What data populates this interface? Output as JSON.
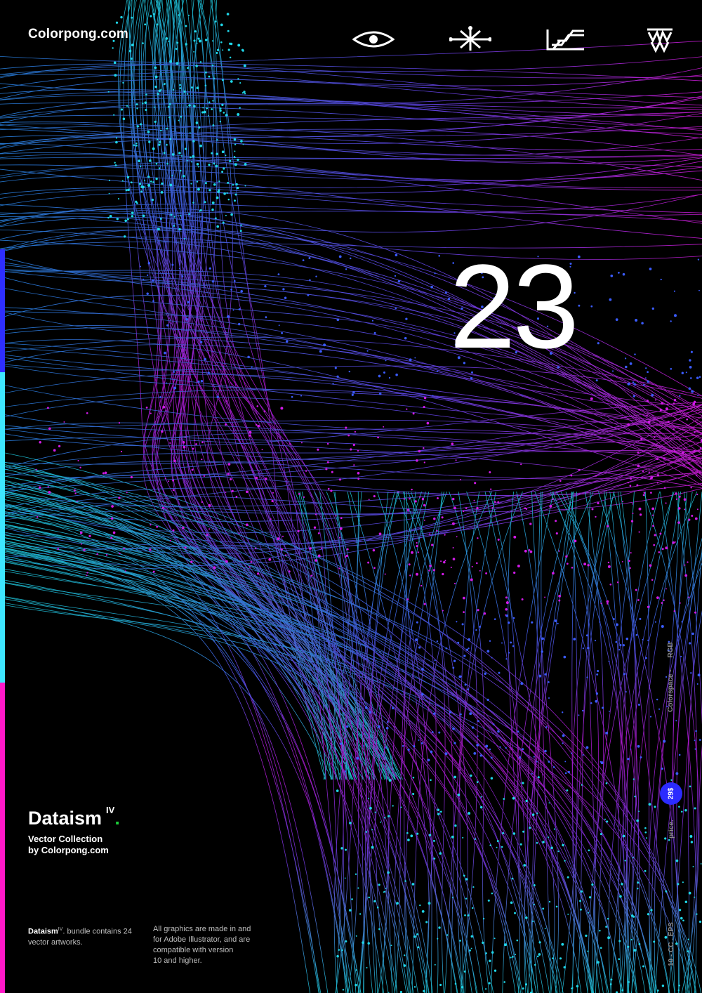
{
  "brand": "Colorpong.com",
  "icons": [
    "eye-glyph-icon",
    "asterisk-glyph-icon",
    "stairs-glyph-icon",
    "crown-glyph-icon"
  ],
  "number": "23",
  "stripes": [
    "#2e2eff",
    "#3ee6ff",
    "#ff18c8"
  ],
  "title": {
    "name": "Dataism",
    "sup": "IV",
    "dot": "."
  },
  "subtitle": {
    "line1": "Vector Collection",
    "line2": "by Colorpong.com"
  },
  "footer_left": {
    "bold": "Dataism",
    "sup": "IV",
    "rest": ". bundle contains 24 vector artworks."
  },
  "footer_right": {
    "line1": "All graphics are made in and",
    "line2": "for Adobe Illustrator, and are",
    "line3": "compatible with version",
    "line4": "10 and higher."
  },
  "side": {
    "colorspace_label": "Colorspace -",
    "colorspace_value": "RGB",
    "price_label": "price.",
    "price_value": "29$",
    "format": "10 - CC . EPS"
  },
  "colors": {
    "cyan": "#1fd6e8",
    "blue": "#3b5cff",
    "magenta": "#d11be8",
    "accent_green": "#1ccf3a"
  }
}
